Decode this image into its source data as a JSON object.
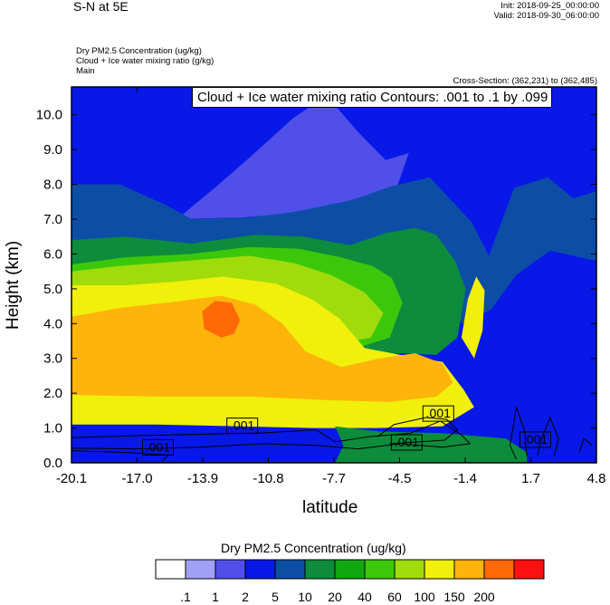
{
  "header": {
    "left_title": "S-N at 5E",
    "init": "Init: 2018-09-25_00:00:00",
    "valid": "Valid: 2018-09-30_06:00:00",
    "field_1": "Dry PM2.5 Concentration   (ug/kg)",
    "field_2": "Cloud + Ice water mixing ratio   (g/kg)",
    "field_3": "Main",
    "cross_section": "Cross-Section: (362,231) to (362,485)"
  },
  "overlay_label": "Cloud + Ice water mixing ratio Contours: .001 to .1 by .099",
  "contour_labels": [
    ".001",
    ".001",
    ".001",
    ".001",
    ".001"
  ],
  "colorbar": {
    "title": "Dry PM2.5 Concentration  (ug/kg)",
    "colors": [
      "#ffffff",
      "#a0a0f6",
      "#5050e8",
      "#0818e6",
      "#0c4ea6",
      "#0c8c3c",
      "#10a810",
      "#3cc80a",
      "#a0dc0c",
      "#f0f00a",
      "#ffb40a",
      "#ff6a06",
      "#ff1010"
    ],
    "labels": [
      ".1",
      "1",
      "2",
      "5",
      "10",
      "20",
      "40",
      "60",
      "100",
      "150",
      "200"
    ]
  },
  "chart_data": {
    "type": "heatmap",
    "title": "",
    "xlabel": "latitude",
    "ylabel": "Height (km)",
    "x_ticks": [
      "-20.1",
      "-17.0",
      "-13.9",
      "-10.8",
      "-7.7",
      "-4.5",
      "-1.4",
      "1.7",
      "4.8"
    ],
    "y_ticks": [
      "0.0",
      "1.0",
      "2.0",
      "3.0",
      "4.0",
      "5.0",
      "6.0",
      "7.0",
      "8.0",
      "9.0",
      "10.0"
    ],
    "xlim": [
      -20.1,
      4.8
    ],
    "ylim": [
      0,
      10.8
    ],
    "levels_ug_per_kg": [
      0.1,
      1,
      2,
      5,
      10,
      20,
      40,
      60,
      100,
      150,
      200
    ],
    "regions": [
      {
        "name": "background",
        "level_index": 3
      },
      {
        "name": "upper-blue-patch",
        "level_index": 2,
        "points": [
          [
            -15.1,
            7.0
          ],
          [
            -13.3,
            7.9
          ],
          [
            -11.6,
            8.8
          ],
          [
            -9.6,
            9.9
          ],
          [
            -8.0,
            10.55
          ],
          [
            -6.5,
            9.5
          ],
          [
            -5.2,
            8.7
          ],
          [
            -4.1,
            8.9
          ],
          [
            -4.7,
            7.85
          ],
          [
            -6.2,
            7.5
          ],
          [
            -7.8,
            7.35
          ],
          [
            -9.8,
            7.15
          ],
          [
            -12.0,
            7.05
          ]
        ]
      },
      {
        "name": "green-left-band",
        "level_index": 4,
        "points": [
          [
            -20.1,
            8.0
          ],
          [
            -17.8,
            8.0
          ],
          [
            -15.6,
            7.4
          ],
          [
            -14.4,
            7.0
          ],
          [
            -11.7,
            7.05
          ],
          [
            -9.6,
            7.2
          ],
          [
            -6.8,
            7.55
          ],
          [
            -4.9,
            7.95
          ],
          [
            -3.1,
            8.2
          ],
          [
            -1.1,
            6.9
          ],
          [
            -0.3,
            5.95
          ],
          [
            0.9,
            7.9
          ],
          [
            2.5,
            8.2
          ],
          [
            3.7,
            7.6
          ],
          [
            4.8,
            7.8
          ],
          [
            4.8,
            5.8
          ],
          [
            2.6,
            6.1
          ],
          [
            1.0,
            5.4
          ],
          [
            -0.2,
            4.4
          ],
          [
            -1.6,
            4.0
          ],
          [
            -3.1,
            5.0
          ],
          [
            -4.8,
            5.5
          ],
          [
            -6.8,
            5.85
          ],
          [
            -9.1,
            5.9
          ],
          [
            -12.1,
            6.05
          ],
          [
            -15.1,
            6.1
          ],
          [
            -17.8,
            6.45
          ],
          [
            -20.1,
            6.35
          ]
        ]
      },
      {
        "name": "green-mid",
        "level_index": 5,
        "points": [
          [
            -20.1,
            6.4
          ],
          [
            -17.6,
            6.5
          ],
          [
            -14.4,
            6.3
          ],
          [
            -11.4,
            6.55
          ],
          [
            -9.1,
            6.5
          ],
          [
            -6.9,
            6.25
          ],
          [
            -5.2,
            6.6
          ],
          [
            -3.8,
            6.75
          ],
          [
            -2.8,
            6.55
          ],
          [
            -1.9,
            5.8
          ],
          [
            -1.4,
            5.0
          ],
          [
            -1.8,
            3.6
          ],
          [
            -2.8,
            3.1
          ],
          [
            -4.4,
            3.15
          ],
          [
            -6.1,
            3.1
          ],
          [
            -8.0,
            3.5
          ],
          [
            -10.3,
            4.0
          ],
          [
            -13.6,
            4.4
          ],
          [
            -16.7,
            4.6
          ],
          [
            -20.1,
            4.8
          ]
        ]
      },
      {
        "name": "green-light",
        "level_index": 7,
        "points": [
          [
            -20.1,
            5.7
          ],
          [
            -17.6,
            5.9
          ],
          [
            -14.4,
            6.0
          ],
          [
            -11.7,
            6.2
          ],
          [
            -9.3,
            6.15
          ],
          [
            -7.3,
            5.9
          ],
          [
            -5.8,
            5.65
          ],
          [
            -4.9,
            5.3
          ],
          [
            -4.4,
            4.6
          ],
          [
            -5.0,
            3.6
          ],
          [
            -6.8,
            3.25
          ],
          [
            -8.6,
            3.5
          ],
          [
            -11.0,
            3.85
          ],
          [
            -14.0,
            4.15
          ],
          [
            -17.0,
            4.4
          ],
          [
            -20.1,
            4.5
          ]
        ]
      },
      {
        "name": "lime",
        "level_index": 8,
        "points": [
          [
            -20.1,
            5.5
          ],
          [
            -17.9,
            5.65
          ],
          [
            -14.7,
            5.8
          ],
          [
            -11.7,
            5.95
          ],
          [
            -9.6,
            5.75
          ],
          [
            -7.8,
            5.4
          ],
          [
            -6.2,
            4.9
          ],
          [
            -5.3,
            4.3
          ],
          [
            -5.9,
            3.6
          ],
          [
            -7.6,
            3.4
          ],
          [
            -9.9,
            3.55
          ],
          [
            -12.7,
            3.9
          ],
          [
            -16.1,
            4.2
          ],
          [
            -20.1,
            4.35
          ]
        ]
      },
      {
        "name": "yellow",
        "level_index": 9,
        "points": [
          [
            -20.1,
            5.1
          ],
          [
            -17.6,
            5.1
          ],
          [
            -15.3,
            5.2
          ],
          [
            -12.9,
            5.35
          ],
          [
            -10.4,
            5.15
          ],
          [
            -8.7,
            4.7
          ],
          [
            -7.4,
            4.15
          ],
          [
            -6.2,
            3.3
          ],
          [
            -4.5,
            3.1
          ],
          [
            -2.5,
            2.9
          ],
          [
            -1.5,
            2.1
          ],
          [
            -1.0,
            1.6
          ],
          [
            -2.5,
            1.05
          ],
          [
            -5.6,
            1.0
          ],
          [
            -8.6,
            1.0
          ],
          [
            -12.1,
            1.05
          ],
          [
            -16.1,
            1.1
          ],
          [
            -20.1,
            1.1
          ]
        ]
      },
      {
        "name": "orange",
        "level_index": 10,
        "points": [
          [
            -20.1,
            4.2
          ],
          [
            -17.8,
            4.45
          ],
          [
            -15.6,
            4.6
          ],
          [
            -13.0,
            4.8
          ],
          [
            -11.4,
            4.55
          ],
          [
            -10.1,
            4.0
          ],
          [
            -9.0,
            3.2
          ],
          [
            -7.3,
            2.75
          ],
          [
            -5.5,
            3.0
          ],
          [
            -3.8,
            3.15
          ],
          [
            -2.5,
            2.85
          ],
          [
            -2.0,
            2.3
          ],
          [
            -2.8,
            1.9
          ],
          [
            -5.0,
            1.75
          ],
          [
            -8.0,
            1.8
          ],
          [
            -11.6,
            1.9
          ],
          [
            -15.6,
            1.9
          ],
          [
            -20.1,
            1.95
          ]
        ]
      },
      {
        "name": "red-orange-core",
        "level_index": 11,
        "points": [
          [
            -13.9,
            4.35
          ],
          [
            -13.3,
            4.65
          ],
          [
            -12.5,
            4.6
          ],
          [
            -12.1,
            4.1
          ],
          [
            -12.4,
            3.7
          ],
          [
            -13.0,
            3.6
          ],
          [
            -13.8,
            3.85
          ]
        ]
      },
      {
        "name": "right-column-yellow",
        "level_index": 9,
        "points": [
          [
            -1.6,
            3.6
          ],
          [
            -1.3,
            4.7
          ],
          [
            -0.9,
            5.35
          ],
          [
            -0.5,
            4.95
          ],
          [
            -0.6,
            3.8
          ],
          [
            -1.0,
            3.0
          ]
        ]
      },
      {
        "name": "right-lower-blue",
        "level_index": 3,
        "points": [
          [
            -0.8,
            1.8
          ],
          [
            0.9,
            2.5
          ],
          [
            2.2,
            2.2
          ],
          [
            3.5,
            2.5
          ],
          [
            4.8,
            2.3
          ],
          [
            4.8,
            0.2
          ],
          [
            2.5,
            0.2
          ],
          [
            0.0,
            0.4
          ],
          [
            -0.9,
            0.7
          ]
        ]
      },
      {
        "name": "bottom-blue",
        "level_index": 3,
        "points": [
          [
            -20.1,
            0.0
          ],
          [
            -20.1,
            0.55
          ],
          [
            -15.0,
            0.6
          ],
          [
            -12.0,
            0.75
          ],
          [
            -9.0,
            0.85
          ],
          [
            -7.6,
            1.0
          ],
          [
            -7.2,
            0.5
          ],
          [
            -7.6,
            0.0
          ]
        ]
      },
      {
        "name": "bottom-green",
        "level_index": 5,
        "points": [
          [
            -7.6,
            0.0
          ],
          [
            -7.2,
            0.5
          ],
          [
            -7.6,
            1.05
          ],
          [
            -5.5,
            0.9
          ],
          [
            -2.5,
            0.85
          ],
          [
            0.5,
            0.7
          ],
          [
            1.5,
            0.3
          ],
          [
            1.5,
            0.0
          ]
        ]
      }
    ]
  }
}
